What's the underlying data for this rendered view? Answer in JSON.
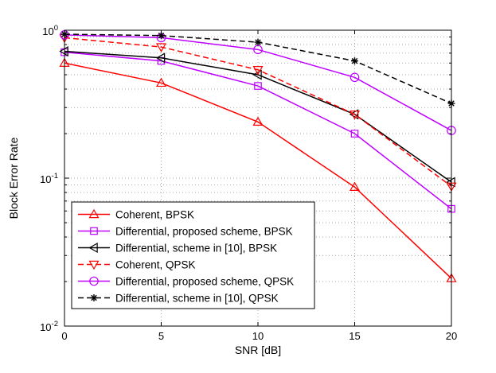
{
  "chart_data": {
    "type": "line",
    "title": "",
    "xlabel": "SNR [dB]",
    "ylabel": "Block Error Rate",
    "x": [
      0,
      5,
      10,
      15,
      20
    ],
    "xlim": [
      0,
      20
    ],
    "ylim": [
      0.01,
      1
    ],
    "yscale": "log",
    "grid": true,
    "xticks": [
      0,
      5,
      10,
      15,
      20
    ],
    "yticks": [
      {
        "value": 0.01,
        "base": "10",
        "exp": "-2"
      },
      {
        "value": 0.1,
        "base": "10",
        "exp": "-1"
      },
      {
        "value": 1,
        "base": "10",
        "exp": "0"
      }
    ],
    "legend_position": "lower-left",
    "series": [
      {
        "name": "Coherent, BPSK",
        "color": "#ff0000",
        "dash": "solid",
        "marker": "triangle-up",
        "values": [
          0.6,
          0.44,
          0.24,
          0.087,
          0.021
        ]
      },
      {
        "name": "Differential, proposed scheme, BPSK",
        "color": "#bf00ff",
        "dash": "solid",
        "marker": "square",
        "values": [
          0.71,
          0.62,
          0.42,
          0.2,
          0.062
        ]
      },
      {
        "name": "Differential, scheme in [10], BPSK",
        "color": "#000000",
        "dash": "solid",
        "marker": "triangle-left",
        "values": [
          0.72,
          0.65,
          0.5,
          0.27,
          0.094
        ]
      },
      {
        "name": "Coherent, QPSK",
        "color": "#ff0000",
        "dash": "dashed",
        "marker": "triangle-down",
        "values": [
          0.89,
          0.77,
          0.54,
          0.27,
          0.088
        ]
      },
      {
        "name": "Differential, proposed scheme, QPSK",
        "color": "#bf00ff",
        "dash": "solid",
        "marker": "circle",
        "values": [
          0.93,
          0.89,
          0.74,
          0.48,
          0.21
        ]
      },
      {
        "name": "Differential, scheme in [10], QPSK",
        "color": "#000000",
        "dash": "dashed",
        "marker": "asterisk",
        "values": [
          0.94,
          0.92,
          0.83,
          0.62,
          0.32
        ]
      }
    ]
  }
}
